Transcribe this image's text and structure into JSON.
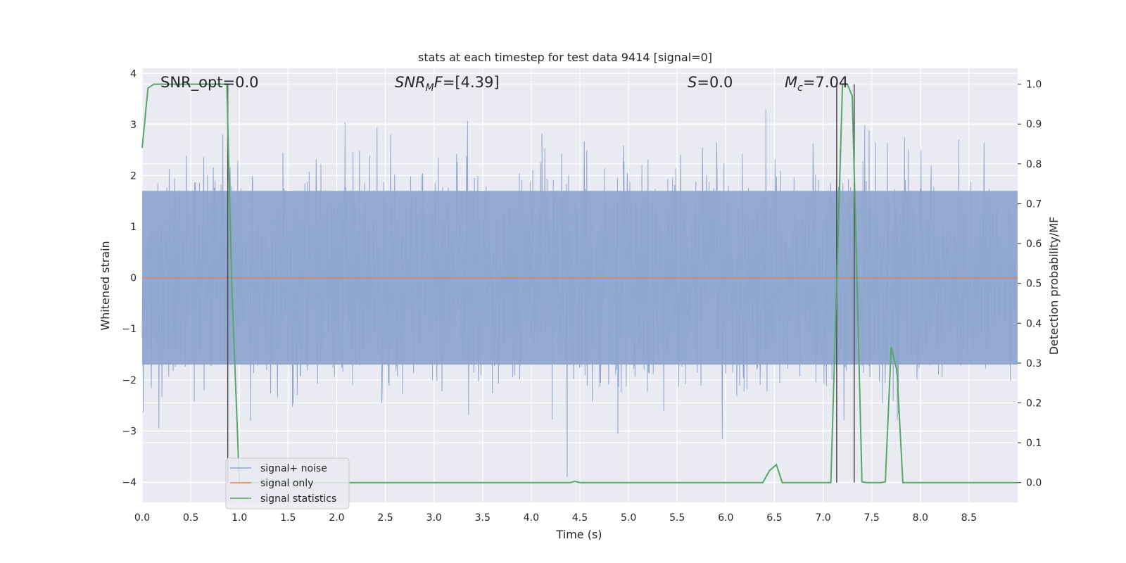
{
  "chart_data": {
    "type": "line",
    "title": "stats at each timestep for test data 9414 [signal=0]",
    "xlabel": "Time (s)",
    "ylabel": "Whitened strain",
    "ylabel_right": "Detection probability/MF",
    "xlim": [
      0.0,
      9.0
    ],
    "ylim": [
      -4.4,
      4.1
    ],
    "ylim_right": [
      -0.05,
      1.04
    ],
    "x_ticks": [
      "0.0",
      "0.5",
      "1.0",
      "1.5",
      "2.0",
      "2.5",
      "3.0",
      "3.5",
      "4.0",
      "4.5",
      "5.0",
      "5.5",
      "6.0",
      "6.5",
      "7.0",
      "7.5",
      "8.0",
      "8.5"
    ],
    "y_ticks": [
      "4",
      "3",
      "2",
      "1",
      "0",
      "−1",
      "−2",
      "−3",
      "−4"
    ],
    "y_ticks_right": [
      "1.0",
      "0.9",
      "0.8",
      "0.7",
      "0.6",
      "0.5",
      "0.4",
      "0.3",
      "0.2",
      "0.1",
      "0.0"
    ],
    "annotations": {
      "snr_opt": "SNR_opt=0.0",
      "snr_mf_main": "SNR",
      "snr_mf_sub": "M",
      "snr_mf_after": "F",
      "snr_mf_value": "=[4.39]",
      "s_main": "S",
      "s_value": "=0.0",
      "mc_main": "M",
      "mc_sub": "c",
      "mc_value": "=7.04"
    },
    "legend_position": "lower-left",
    "series": [
      {
        "name": "signal+ noise",
        "color": "#8fa6cf",
        "description_values": "whitened strain noise, roughly within [-2, 2] with spikes to ±3.8",
        "envelope_y": [
          -1.7,
          1.7
        ]
      },
      {
        "name": "signal only",
        "color": "#dd8452",
        "y_constant": 0.0
      },
      {
        "name": "signal statistics",
        "color": "#55a868",
        "axis": "right",
        "points": [
          [
            0.0,
            0.84
          ],
          [
            0.06,
            0.99
          ],
          [
            0.12,
            1.0
          ],
          [
            0.5,
            1.0
          ],
          [
            0.87,
            1.0
          ],
          [
            0.92,
            0.5
          ],
          [
            1.0,
            0.0
          ],
          [
            4.4,
            0.0
          ],
          [
            4.45,
            0.003
          ],
          [
            4.5,
            0.0
          ],
          [
            6.38,
            0.0
          ],
          [
            6.45,
            0.03
          ],
          [
            6.52,
            0.045
          ],
          [
            6.58,
            0.0
          ],
          [
            7.08,
            0.0
          ],
          [
            7.14,
            0.5
          ],
          [
            7.2,
            1.0
          ],
          [
            7.25,
            1.0
          ],
          [
            7.3,
            0.97
          ],
          [
            7.35,
            0.5
          ],
          [
            7.4,
            0.002
          ],
          [
            7.45,
            0.0
          ],
          [
            7.6,
            0.0
          ],
          [
            7.64,
            0.002
          ],
          [
            7.7,
            0.34
          ],
          [
            7.76,
            0.28
          ],
          [
            7.82,
            0.0
          ],
          [
            9.0,
            0.0
          ]
        ]
      }
    ],
    "vertical_lines_x": [
      0.88,
      7.14,
      7.32
    ],
    "legend": {
      "entries": [
        "signal+ noise",
        "signal only",
        "signal statistics"
      ]
    }
  }
}
